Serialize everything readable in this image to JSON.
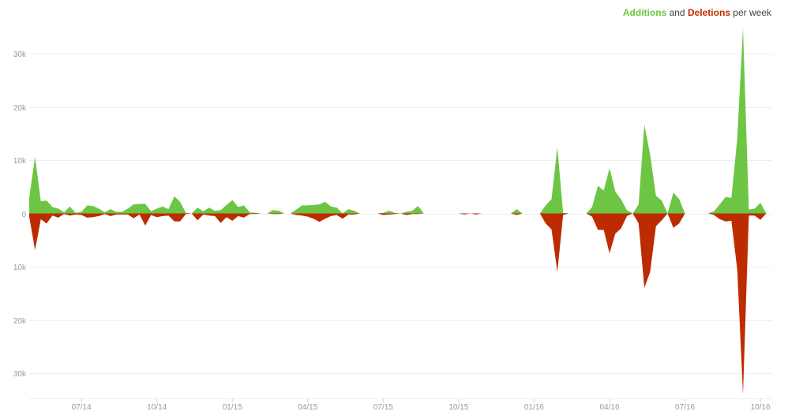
{
  "legend": {
    "additions_label": "Additions",
    "connector": "and",
    "deletions_label": "Deletions",
    "suffix": "per week",
    "additions_color": "#6cc644",
    "deletions_color": "#bd2c00"
  },
  "chart_data": {
    "type": "area",
    "title": "",
    "xlabel": "",
    "ylabel": "",
    "grid": true,
    "legend_position": "top-right",
    "ylim": [
      -34000,
      35000
    ],
    "y_ticks": [
      {
        "value": 30000,
        "label": "30k"
      },
      {
        "value": 20000,
        "label": "20k"
      },
      {
        "value": 10000,
        "label": "10k"
      },
      {
        "value": 0,
        "label": "0"
      },
      {
        "value": -10000,
        "label": "10k"
      },
      {
        "value": -20000,
        "label": "20k"
      },
      {
        "value": -30000,
        "label": "30k"
      }
    ],
    "x_ticks": [
      {
        "week": 9,
        "label": "07/14"
      },
      {
        "week": 22,
        "label": "10/14"
      },
      {
        "week": 35,
        "label": "01/15"
      },
      {
        "week": 48,
        "label": "04/15"
      },
      {
        "week": 61,
        "label": "07/15"
      },
      {
        "week": 74,
        "label": "10/15"
      },
      {
        "week": 87,
        "label": "01/16"
      },
      {
        "week": 100,
        "label": "04/16"
      },
      {
        "week": 113,
        "label": "07/16"
      },
      {
        "week": 126,
        "label": "10/16"
      }
    ],
    "series": [
      {
        "name": "Additions",
        "color": "#6cc644",
        "points": [
          [
            0,
            3000
          ],
          [
            1,
            10600
          ],
          [
            2,
            2300
          ],
          [
            3,
            2400
          ],
          [
            4,
            1200
          ],
          [
            5,
            900
          ],
          [
            6,
            200
          ],
          [
            7,
            1300
          ],
          [
            8,
            100
          ],
          [
            9,
            300
          ],
          [
            10,
            1500
          ],
          [
            11,
            1400
          ],
          [
            12,
            900
          ],
          [
            13,
            200
          ],
          [
            14,
            800
          ],
          [
            15,
            300
          ],
          [
            16,
            300
          ],
          [
            17,
            900
          ],
          [
            18,
            1700
          ],
          [
            19,
            1800
          ],
          [
            20,
            1800
          ],
          [
            21,
            400
          ],
          [
            22,
            900
          ],
          [
            23,
            1300
          ],
          [
            24,
            800
          ],
          [
            25,
            3200
          ],
          [
            26,
            2200
          ],
          [
            27,
            100
          ],
          [
            28,
            0
          ],
          [
            29,
            1100
          ],
          [
            30,
            400
          ],
          [
            31,
            1100
          ],
          [
            32,
            500
          ],
          [
            33,
            600
          ],
          [
            34,
            1600
          ],
          [
            35,
            2500
          ],
          [
            36,
            1200
          ],
          [
            37,
            1500
          ],
          [
            38,
            200
          ],
          [
            39,
            100
          ],
          [
            40,
            0
          ],
          [
            41,
            0
          ],
          [
            42,
            600
          ],
          [
            43,
            500
          ],
          [
            44,
            0
          ],
          [
            45,
            0
          ],
          [
            46,
            700
          ],
          [
            47,
            1500
          ],
          [
            48,
            1500
          ],
          [
            49,
            1600
          ],
          [
            50,
            1700
          ],
          [
            51,
            2200
          ],
          [
            52,
            1300
          ],
          [
            53,
            1100
          ],
          [
            54,
            0
          ],
          [
            55,
            800
          ],
          [
            56,
            500
          ],
          [
            57,
            0
          ],
          [
            58,
            0
          ],
          [
            59,
            0
          ],
          [
            60,
            0
          ],
          [
            61,
            100
          ],
          [
            62,
            500
          ],
          [
            63,
            100
          ],
          [
            64,
            0
          ],
          [
            65,
            300
          ],
          [
            66,
            500
          ],
          [
            67,
            1400
          ],
          [
            68,
            0
          ],
          [
            69,
            0
          ],
          [
            70,
            0
          ],
          [
            71,
            0
          ],
          [
            72,
            0
          ],
          [
            73,
            0
          ],
          [
            74,
            0
          ],
          [
            75,
            0
          ],
          [
            76,
            0
          ],
          [
            77,
            0
          ],
          [
            78,
            0
          ],
          [
            79,
            0
          ],
          [
            80,
            0
          ],
          [
            81,
            0
          ],
          [
            82,
            0
          ],
          [
            83,
            0
          ],
          [
            84,
            800
          ],
          [
            85,
            0
          ],
          [
            86,
            0
          ],
          [
            87,
            0
          ],
          [
            88,
            0
          ],
          [
            89,
            1500
          ],
          [
            90,
            2700
          ],
          [
            91,
            12400
          ],
          [
            92,
            100
          ],
          [
            93,
            0
          ],
          [
            94,
            0
          ],
          [
            95,
            0
          ],
          [
            96,
            0
          ],
          [
            97,
            1200
          ],
          [
            98,
            5200
          ],
          [
            99,
            4300
          ],
          [
            100,
            8500
          ],
          [
            101,
            4100
          ],
          [
            102,
            2600
          ],
          [
            103,
            600
          ],
          [
            104,
            0
          ],
          [
            105,
            1700
          ],
          [
            106,
            16700
          ],
          [
            107,
            11000
          ],
          [
            108,
            3300
          ],
          [
            109,
            2400
          ],
          [
            110,
            0
          ],
          [
            111,
            3900
          ],
          [
            112,
            2700
          ],
          [
            113,
            0
          ],
          [
            114,
            0
          ],
          [
            115,
            0
          ],
          [
            116,
            0
          ],
          [
            117,
            0
          ],
          [
            118,
            400
          ],
          [
            119,
            1700
          ],
          [
            120,
            3100
          ],
          [
            121,
            2900
          ],
          [
            122,
            14000
          ],
          [
            123,
            34800
          ],
          [
            124,
            700
          ],
          [
            125,
            900
          ],
          [
            126,
            2000
          ],
          [
            127,
            0
          ]
        ]
      },
      {
        "name": "Deletions",
        "color": "#bd2c00",
        "points": [
          [
            0,
            -600
          ],
          [
            1,
            -6900
          ],
          [
            2,
            -1100
          ],
          [
            3,
            -1900
          ],
          [
            4,
            -400
          ],
          [
            5,
            -800
          ],
          [
            6,
            -100
          ],
          [
            7,
            -400
          ],
          [
            8,
            -200
          ],
          [
            9,
            -300
          ],
          [
            10,
            -800
          ],
          [
            11,
            -700
          ],
          [
            12,
            -500
          ],
          [
            13,
            -100
          ],
          [
            14,
            -500
          ],
          [
            15,
            -200
          ],
          [
            16,
            -200
          ],
          [
            17,
            -200
          ],
          [
            18,
            -900
          ],
          [
            19,
            -200
          ],
          [
            20,
            -2300
          ],
          [
            21,
            -300
          ],
          [
            22,
            -700
          ],
          [
            23,
            -500
          ],
          [
            24,
            -400
          ],
          [
            25,
            -1500
          ],
          [
            26,
            -1500
          ],
          [
            27,
            -100
          ],
          [
            28,
            0
          ],
          [
            29,
            -1300
          ],
          [
            30,
            -200
          ],
          [
            31,
            -400
          ],
          [
            32,
            -500
          ],
          [
            33,
            -1800
          ],
          [
            34,
            -700
          ],
          [
            35,
            -1400
          ],
          [
            36,
            -500
          ],
          [
            37,
            -800
          ],
          [
            38,
            -100
          ],
          [
            39,
            -100
          ],
          [
            40,
            0
          ],
          [
            41,
            0
          ],
          [
            42,
            -100
          ],
          [
            43,
            -100
          ],
          [
            44,
            0
          ],
          [
            45,
            0
          ],
          [
            46,
            -300
          ],
          [
            47,
            -400
          ],
          [
            48,
            -600
          ],
          [
            49,
            -1000
          ],
          [
            50,
            -1600
          ],
          [
            51,
            -1000
          ],
          [
            52,
            -500
          ],
          [
            53,
            -300
          ],
          [
            54,
            -1000
          ],
          [
            55,
            -200
          ],
          [
            56,
            -200
          ],
          [
            57,
            0
          ],
          [
            58,
            0
          ],
          [
            59,
            0
          ],
          [
            60,
            0
          ],
          [
            61,
            -300
          ],
          [
            62,
            -200
          ],
          [
            63,
            -100
          ],
          [
            64,
            0
          ],
          [
            65,
            -300
          ],
          [
            66,
            -100
          ],
          [
            67,
            -100
          ],
          [
            68,
            0
          ],
          [
            69,
            0
          ],
          [
            70,
            0
          ],
          [
            71,
            0
          ],
          [
            72,
            0
          ],
          [
            73,
            0
          ],
          [
            74,
            0
          ],
          [
            75,
            -200
          ],
          [
            76,
            0
          ],
          [
            77,
            -200
          ],
          [
            78,
            0
          ],
          [
            79,
            0
          ],
          [
            80,
            0
          ],
          [
            81,
            0
          ],
          [
            82,
            0
          ],
          [
            83,
            0
          ],
          [
            84,
            -300
          ],
          [
            85,
            0
          ],
          [
            86,
            0
          ],
          [
            87,
            0
          ],
          [
            88,
            0
          ],
          [
            89,
            -1900
          ],
          [
            90,
            -3000
          ],
          [
            91,
            -11000
          ],
          [
            92,
            -300
          ],
          [
            93,
            0
          ],
          [
            94,
            0
          ],
          [
            95,
            0
          ],
          [
            96,
            0
          ],
          [
            97,
            -600
          ],
          [
            98,
            -3100
          ],
          [
            99,
            -3100
          ],
          [
            100,
            -7500
          ],
          [
            101,
            -3800
          ],
          [
            102,
            -2800
          ],
          [
            103,
            -500
          ],
          [
            104,
            0
          ],
          [
            105,
            -1900
          ],
          [
            106,
            -14000
          ],
          [
            107,
            -11000
          ],
          [
            108,
            -2400
          ],
          [
            109,
            -1300
          ],
          [
            110,
            0
          ],
          [
            111,
            -2700
          ],
          [
            112,
            -1900
          ],
          [
            113,
            0
          ],
          [
            114,
            0
          ],
          [
            115,
            0
          ],
          [
            116,
            0
          ],
          [
            117,
            0
          ],
          [
            118,
            -300
          ],
          [
            119,
            -1100
          ],
          [
            120,
            -1500
          ],
          [
            121,
            -1400
          ],
          [
            122,
            -10500
          ],
          [
            123,
            -34000
          ],
          [
            124,
            -400
          ],
          [
            125,
            -400
          ],
          [
            126,
            -1200
          ],
          [
            127,
            0
          ]
        ]
      }
    ]
  }
}
